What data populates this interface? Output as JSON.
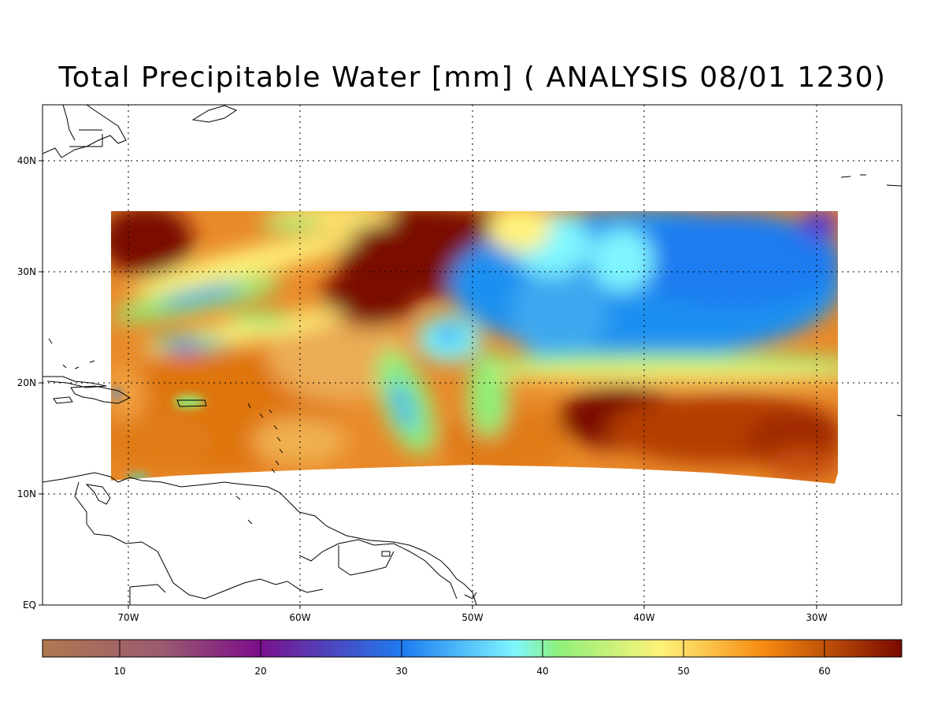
{
  "title": "Total Precipitable Water [mm]  ( ANALYSIS 08/01 1230)",
  "map": {
    "lat_ticks": [
      "40N",
      "30N",
      "20N",
      "10N",
      "EQ"
    ],
    "lon_ticks": [
      "70W",
      "60W",
      "50W",
      "40W",
      "30W"
    ],
    "lon_range": [
      -75,
      -25
    ],
    "lat_range": [
      0,
      45
    ],
    "grid": "dotted"
  },
  "colorbar": {
    "range": [
      5,
      66
    ],
    "ticks": [
      "10",
      "20",
      "30",
      "40",
      "50",
      "60"
    ],
    "colors": {
      "low": "#b07850",
      "mauve": "#9a5a70",
      "purple": "#7d0f8a",
      "blue": "#1e7cf0",
      "cyan": "#7ff6ff",
      "green": "#8ef07a",
      "yellow": "#fff27a",
      "orange": "#f58a10",
      "high": "#7a0a00"
    }
  }
}
